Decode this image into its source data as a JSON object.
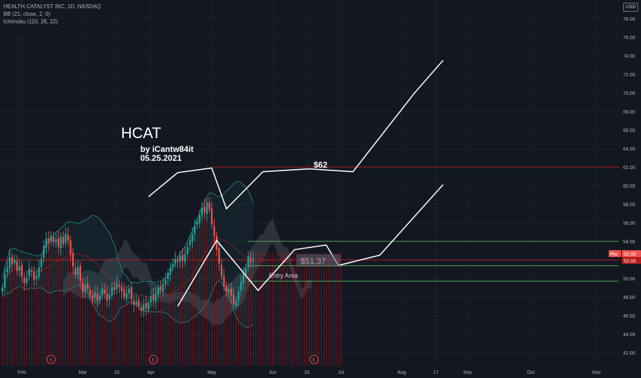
{
  "header": {
    "symbol_line": "HEALTH CATALYST INC, 1D, NASDAQ",
    "indicators": [
      "BB (21, close, 2, 0)",
      "Ichimoku (110, 28, 22)"
    ],
    "currency": "USD"
  },
  "annotations": {
    "title": "HCAT",
    "author": "by iCantw84it",
    "date": "05.25.2021",
    "target_label": "$62",
    "entry_price_label": "$51.37",
    "entry_area_label": "Entry Area",
    "earnings_marker": "E",
    "pre_label": "Pre",
    "pre_price": "52.00",
    "last_price": "52.00"
  },
  "colors": {
    "background": "#131722",
    "up": "#26a69a",
    "down": "#ef5350",
    "target_line": "#b71c1c",
    "support_line": "#4caf50",
    "projection": "#ffffff",
    "cloud": "#5d606b",
    "bb_band": "#21807a",
    "volume": "#b71c1c"
  },
  "chart_data": {
    "type": "candlestick",
    "symbol": "HCAT",
    "interval": "1D",
    "exchange": "NASDAQ",
    "ylim": [
      40.6,
      80.0
    ],
    "y_ticks": [
      "42.00",
      "44.00",
      "46.00",
      "48.00",
      "50.00",
      "52.00",
      "54.00",
      "56.00",
      "58.00",
      "60.00",
      "62.00",
      "64.00",
      "66.00",
      "68.00",
      "70.00",
      "72.00",
      "74.00",
      "76.00",
      "78.00"
    ],
    "x_ticks": [
      "Feb",
      "Mar",
      "16",
      "Apr",
      "May",
      "Jun",
      "16",
      "Jul",
      "Aug",
      "17",
      "Sep",
      "Oct",
      "Nov"
    ],
    "candles_close": [
      49.0,
      50.5,
      51.2,
      52.3,
      51.5,
      52.0,
      50.8,
      51.3,
      50.2,
      49.5,
      50.1,
      51.0,
      50.7,
      49.8,
      50.3,
      51.2,
      52.1,
      53.5,
      54.3,
      53.8,
      54.6,
      53.9,
      54.2,
      53.4,
      54.5,
      53.7,
      54.8,
      54.1,
      52.6,
      51.3,
      50.4,
      51.2,
      49.7,
      48.6,
      49.3,
      48.9,
      48.2,
      47.8,
      48.5,
      47.6,
      48.1,
      48.9,
      48.4,
      47.6,
      48.3,
      49.0,
      48.7,
      49.5,
      49.1,
      48.6,
      48.0,
      48.4,
      48.9,
      47.8,
      47.2,
      47.5,
      47.0,
      46.5,
      47.2,
      46.8,
      47.4,
      48.1,
      47.6,
      48.3,
      49.0,
      48.7,
      49.4,
      49.8,
      50.6,
      51.2,
      51.5,
      52.1,
      51.8,
      52.4,
      51.9,
      52.6,
      53.4,
      54.1,
      54.8,
      55.6,
      56.1,
      56.8,
      57.6,
      57.1,
      58.2,
      57.4,
      55.8,
      54.6,
      53.1,
      51.6,
      50.2,
      49.1,
      48.6,
      48.9,
      48.1,
      47.2,
      47.6,
      48.6,
      49.6,
      50.4,
      51.1,
      52.4,
      51.8,
      52.0
    ],
    "levels": [
      {
        "value": 62.0,
        "color": "#b71c1c"
      },
      {
        "value": 54.0,
        "color": "#4caf50"
      },
      {
        "value": 51.37,
        "color": "#4caf50"
      },
      {
        "value": 49.7,
        "color": "#4caf50"
      },
      {
        "value": 52.0,
        "color": "#b71c1c"
      }
    ],
    "projection_upper": [
      [
        60,
        58.8
      ],
      [
        72,
        61.4
      ],
      [
        86,
        61.9
      ],
      [
        92,
        57.5
      ],
      [
        107,
        61.5
      ],
      [
        126,
        61.8
      ],
      [
        144,
        61.5
      ],
      [
        169,
        69.9
      ],
      [
        181,
        73.5
      ]
    ],
    "projection_lower": [
      [
        72,
        47.0
      ],
      [
        88,
        54.1
      ],
      [
        105,
        48.7
      ],
      [
        120,
        53.1
      ],
      [
        133,
        53.6
      ],
      [
        138,
        51.4
      ],
      [
        155,
        52.5
      ],
      [
        181,
        60.1
      ]
    ],
    "earnings_days": [
      20,
      62,
      128
    ]
  }
}
